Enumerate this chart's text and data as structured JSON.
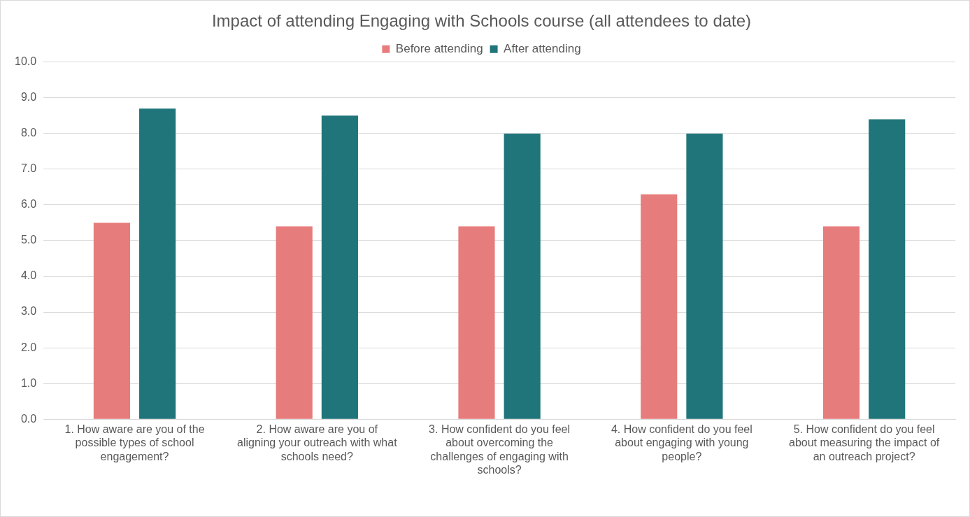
{
  "chart_data": {
    "type": "bar",
    "title": "Impact of attending Engaging with Schools course (all attendees to date)",
    "categories": [
      "1. How aware are you of the possible types of school engagement?",
      "2. How aware are you of aligning your outreach with what schools need?",
      "3. How confident do you feel about overcoming the challenges of engaging with schools?",
      "4. How confident do you feel about engaging with young people?",
      "5. How confident do you feel about measuring the impact of an outreach project?"
    ],
    "series": [
      {
        "name": "Before attending",
        "color": "#e77c7c",
        "values": [
          5.5,
          5.4,
          5.4,
          6.3,
          5.4
        ]
      },
      {
        "name": "After attending",
        "color": "#20757b",
        "values": [
          8.7,
          8.5,
          8.0,
          8.0,
          8.4
        ]
      }
    ],
    "ylim": [
      0,
      10
    ],
    "yticks": [
      {
        "value": 0,
        "label": "0.0"
      },
      {
        "value": 1,
        "label": "1.0"
      },
      {
        "value": 2,
        "label": "2.0"
      },
      {
        "value": 3,
        "label": "3.0"
      },
      {
        "value": 4,
        "label": "4.0"
      },
      {
        "value": 5,
        "label": "5.0"
      },
      {
        "value": 6,
        "label": "6.0"
      },
      {
        "value": 7,
        "label": "7.0"
      },
      {
        "value": 8,
        "label": "8.0"
      },
      {
        "value": 9,
        "label": "9.0"
      },
      {
        "value": 10,
        "label": "10.0"
      }
    ],
    "grid": "y",
    "legend": "top"
  }
}
